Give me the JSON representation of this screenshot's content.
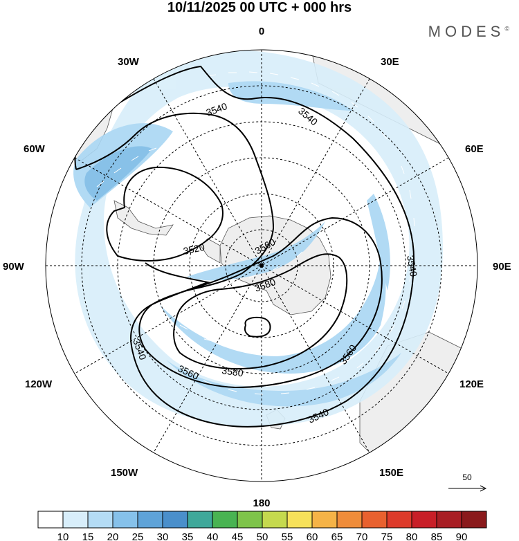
{
  "header": {
    "title": "10/11/2025  00 UTC  + 000 hrs",
    "brand": "MODES",
    "brand_mark": "©"
  },
  "map": {
    "projection": "south-polar-stereographic",
    "longitude_labels": {
      "lon_0": "0",
      "lon_30e": "30E",
      "lon_60e": "60E",
      "lon_90e": "90E",
      "lon_120e": "120E",
      "lon_150e": "150E",
      "lon_180": "180",
      "lon_150w": "150W",
      "lon_120w": "120W",
      "lon_90w": "90W",
      "lon_60w": "60W",
      "lon_30w": "30W"
    },
    "contours": {
      "label_3540_a": "3540",
      "label_3540_b": "3540",
      "label_3540_c": "3540",
      "label_3540_d": "3540",
      "label_3540_e": "3540",
      "label_3520": "3520",
      "label_3560_a": "3560",
      "label_3560_b": "3560",
      "label_3560_c": "3560",
      "label_3580_a": "3580",
      "label_3580_b": "3580"
    },
    "wind_reference": {
      "value": "50"
    },
    "colors": {
      "land": "#eeeeee",
      "coast": "#555555",
      "shade_15": "#d8eefa",
      "shade_20": "#a9d6f3",
      "shade_25": "#7cbbe6"
    }
  },
  "colorbar": {
    "labels": [
      "10",
      "15",
      "20",
      "25",
      "30",
      "35",
      "40",
      "45",
      "50",
      "55",
      "60",
      "65",
      "70",
      "75",
      "80",
      "85",
      "90"
    ],
    "colors": [
      "#ffffff",
      "#d8eefa",
      "#b4dcf5",
      "#86c1ea",
      "#5fa3d8",
      "#4a8fcb",
      "#3fa89a",
      "#49b352",
      "#7ec44a",
      "#c5d94e",
      "#f6e15a",
      "#f5b347",
      "#ef8c3a",
      "#e8612f",
      "#dd3b2b",
      "#c81f28",
      "#a81e24",
      "#8a1a1c"
    ]
  }
}
